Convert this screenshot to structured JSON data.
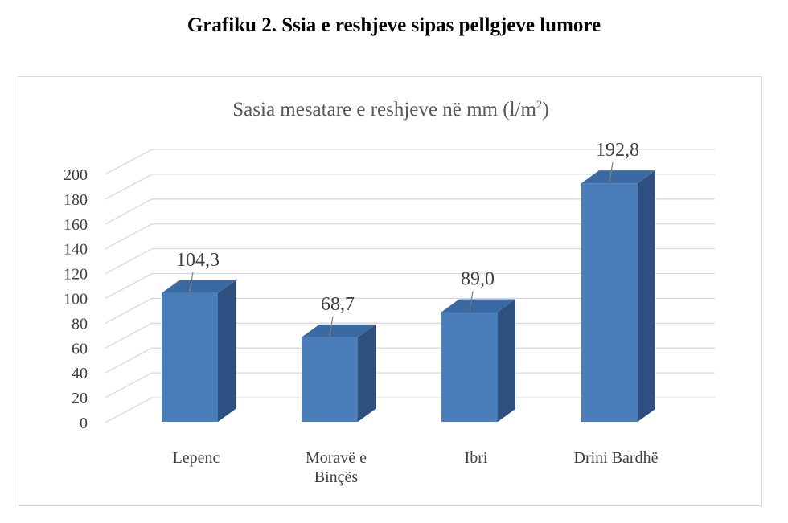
{
  "figure_caption": "Grafiku 2. Ssia e reshjeve sipas pellgjeve lumore",
  "chart_data": {
    "type": "bar",
    "style": "3d-column",
    "title_main": "Sasia mesatare e reshjeve në mm (l/m",
    "title_sup": "2",
    "title_end": ")",
    "categories": [
      [
        "Lepenc"
      ],
      [
        "Moravë e",
        "Binçës"
      ],
      [
        "Ibri"
      ],
      [
        "Drini Bardhë"
      ]
    ],
    "values": [
      104.3,
      68.7,
      89.0,
      192.8
    ],
    "data_labels": [
      "104,3",
      "68,7",
      "89,0",
      "192,8"
    ],
    "ylim": [
      0,
      200
    ],
    "yticks": [
      "0",
      "20",
      "40",
      "60",
      "80",
      "100",
      "120",
      "140",
      "160",
      "180",
      "200"
    ],
    "grid": true,
    "legend": "none",
    "bar_color": "#4a7ebb",
    "bar_side_color": "#2e5080",
    "bar_top_color": "#3b6aa3",
    "grid_color": "#d9d9d9"
  }
}
